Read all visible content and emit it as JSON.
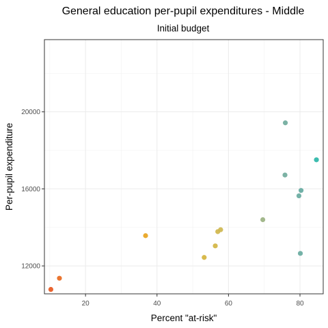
{
  "chart_data": {
    "type": "scatter",
    "title": "General education per-pupil expenditures - Middle",
    "subtitle": "Initial budget",
    "xlabel": "Percent \"at-risk\"",
    "ylabel": "Per-pupil expenditure",
    "xlim": [
      8.5,
      86.5
    ],
    "ylim": [
      10550,
      23750
    ],
    "x_ticks": [
      20,
      40,
      60,
      80
    ],
    "y_ticks": [
      12000,
      16000,
      20000
    ],
    "grid": true,
    "legend": "none",
    "points": [
      {
        "x": 10.3,
        "y": 10780,
        "color": "#e8531a"
      },
      {
        "x": 12.7,
        "y": 11360,
        "color": "#e8661a"
      },
      {
        "x": 36.8,
        "y": 13570,
        "color": "#e8a21a"
      },
      {
        "x": 53.2,
        "y": 12440,
        "color": "#d4b33a"
      },
      {
        "x": 56.3,
        "y": 13040,
        "color": "#d1b43f"
      },
      {
        "x": 57.0,
        "y": 13780,
        "color": "#cfb547"
      },
      {
        "x": 57.8,
        "y": 13880,
        "color": "#cdb64c"
      },
      {
        "x": 69.6,
        "y": 14400,
        "color": "#99b080"
      },
      {
        "x": 75.8,
        "y": 16720,
        "color": "#6eaa9b"
      },
      {
        "x": 75.9,
        "y": 19430,
        "color": "#6eaa9b"
      },
      {
        "x": 79.7,
        "y": 15640,
        "color": "#66aa9e"
      },
      {
        "x": 80.1,
        "y": 12650,
        "color": "#66aa9e"
      },
      {
        "x": 80.3,
        "y": 15920,
        "color": "#62a99f"
      },
      {
        "x": 84.6,
        "y": 17510,
        "color": "#27b5a6"
      }
    ]
  }
}
